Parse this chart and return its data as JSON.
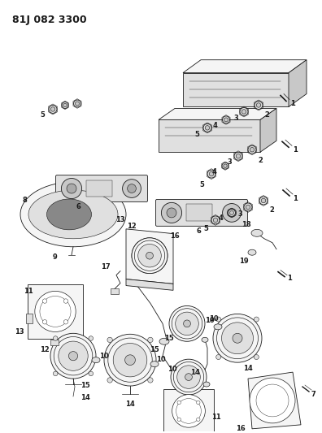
{
  "title": "81J 082 3300",
  "bg_color": "#ffffff",
  "fig_width": 3.96,
  "fig_height": 5.33,
  "dpi": 100,
  "title_fontsize": 9,
  "title_fontweight": "bold",
  "line_color": "#1a1a1a",
  "fill_light": "#f5f5f5",
  "fill_mid": "#e0e0e0",
  "fill_dark": "#c8c8c8"
}
